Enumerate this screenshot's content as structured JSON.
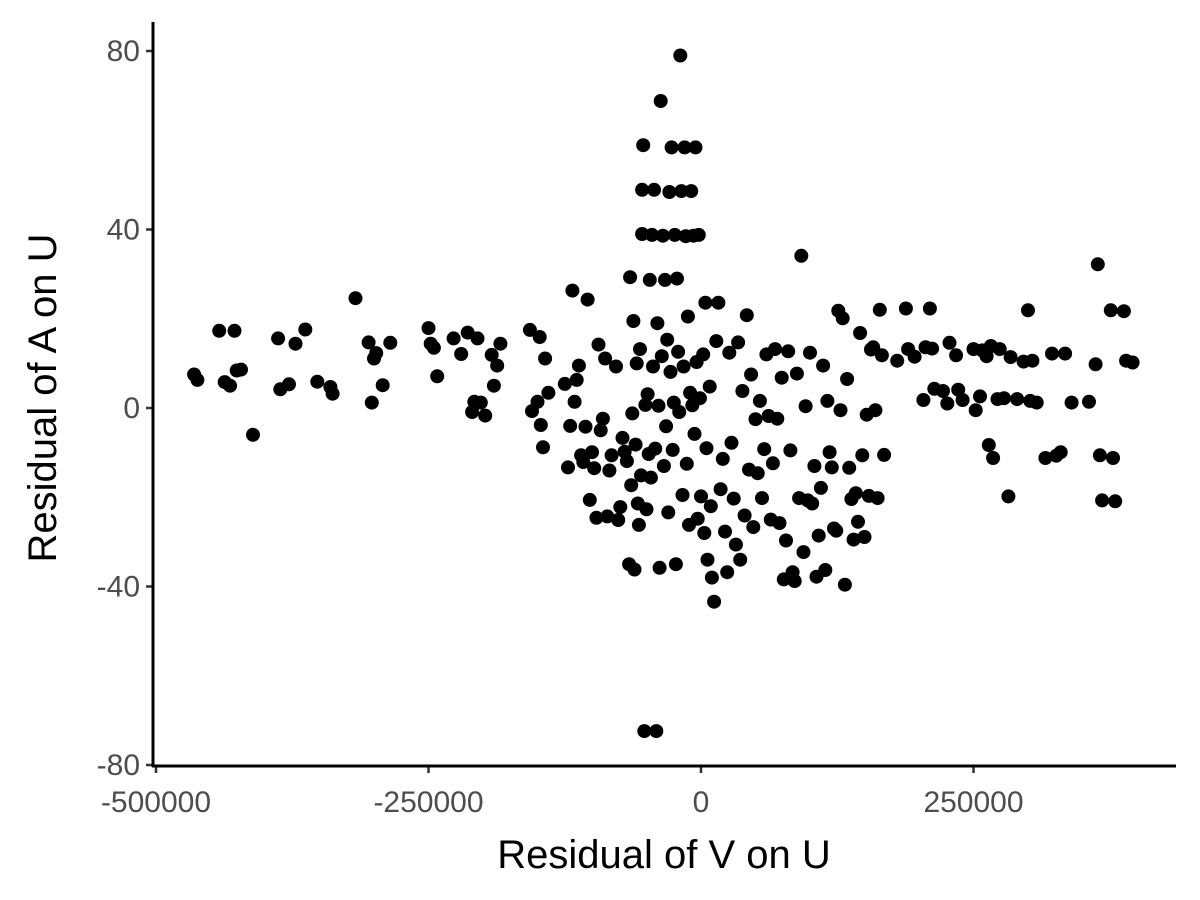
{
  "chart_data": {
    "type": "scatter",
    "title": "",
    "xlabel": "Residual of V on U",
    "ylabel": "Residual of A on U",
    "xlim": [
      -505000,
      435000
    ],
    "ylim": [
      -80,
      85
    ],
    "xticks": [
      -500000,
      -250000,
      0,
      250000
    ],
    "xtick_labels": [
      "-500000",
      "-250000",
      "0",
      "250000"
    ],
    "yticks": [
      -80,
      -40,
      0,
      40,
      80
    ],
    "ytick_labels": [
      "-80",
      "-40",
      "0",
      "40",
      "80"
    ],
    "grid": false,
    "legend": "none",
    "point_color": "#000000",
    "points": [
      [
        -465000,
        7.5
      ],
      [
        -462000,
        6.3
      ],
      [
        -442000,
        17.3
      ],
      [
        -437000,
        5.8
      ],
      [
        -432000,
        5.0
      ],
      [
        -428000,
        17.3
      ],
      [
        -426000,
        8.4
      ],
      [
        -422000,
        8.6
      ],
      [
        -411000,
        -6.0
      ],
      [
        -388000,
        15.6
      ],
      [
        -386000,
        4.2
      ],
      [
        -378000,
        5.3
      ],
      [
        -372000,
        14.4
      ],
      [
        -363000,
        17.6
      ],
      [
        -352000,
        5.9
      ],
      [
        -340000,
        4.7
      ],
      [
        -338000,
        3.2
      ],
      [
        -317000,
        24.6
      ],
      [
        -305000,
        14.7
      ],
      [
        -302000,
        1.2
      ],
      [
        -300000,
        11.1
      ],
      [
        -298000,
        12.3
      ],
      [
        -292000,
        5.1
      ],
      [
        -285000,
        14.6
      ],
      [
        -250000,
        17.9
      ],
      [
        -248000,
        14.4
      ],
      [
        -245000,
        13.5
      ],
      [
        -242000,
        7.1
      ],
      [
        -227000,
        15.6
      ],
      [
        -220000,
        12.1
      ],
      [
        -214000,
        16.9
      ],
      [
        -210000,
        -0.9
      ],
      [
        -208000,
        1.4
      ],
      [
        -205000,
        15.6
      ],
      [
        -202000,
        1.2
      ],
      [
        -198000,
        -1.7
      ],
      [
        -192000,
        11.9
      ],
      [
        -190000,
        5.0
      ],
      [
        -187000,
        9.5
      ],
      [
        -184000,
        14.4
      ],
      [
        -157000,
        17.5
      ],
      [
        -155000,
        -0.7
      ],
      [
        -150000,
        1.4
      ],
      [
        -148000,
        15.9
      ],
      [
        -147000,
        -3.8
      ],
      [
        -145000,
        -8.8
      ],
      [
        -143000,
        11.1
      ],
      [
        -140000,
        3.4
      ],
      [
        -125000,
        5.4
      ],
      [
        -122000,
        -13.3
      ],
      [
        -120000,
        -4.0
      ],
      [
        -118000,
        26.3
      ],
      [
        -116000,
        1.4
      ],
      [
        -114000,
        6.3
      ],
      [
        -112000,
        9.5
      ],
      [
        -110000,
        -10.6
      ],
      [
        -108000,
        -12.1
      ],
      [
        -106000,
        -4.2
      ],
      [
        -104000,
        24.3
      ],
      [
        -102000,
        -20.6
      ],
      [
        -100000,
        -9.9
      ],
      [
        -98000,
        -13.5
      ],
      [
        -96000,
        -24.6
      ],
      [
        -94000,
        14.2
      ],
      [
        -92000,
        -5.0
      ],
      [
        -90000,
        -2.4
      ],
      [
        -88000,
        11.1
      ],
      [
        -86000,
        -24.3
      ],
      [
        -84000,
        -14.0
      ],
      [
        -82000,
        -10.6
      ],
      [
        -78000,
        9.3
      ],
      [
        -76000,
        -25.1
      ],
      [
        -74000,
        -22.2
      ],
      [
        -72000,
        -6.7
      ],
      [
        -70000,
        -9.8
      ],
      [
        -68000,
        -11.9
      ],
      [
        -66000,
        -35.0
      ],
      [
        -65000,
        29.3
      ],
      [
        -64000,
        -17.3
      ],
      [
        -63000,
        -1.2
      ],
      [
        -62000,
        19.5
      ],
      [
        -61000,
        -36.2
      ],
      [
        -60000,
        -8.2
      ],
      [
        -59000,
        10.0
      ],
      [
        -58000,
        -21.4
      ],
      [
        -57000,
        -26.2
      ],
      [
        -56000,
        13.2
      ],
      [
        -55000,
        -15.1
      ],
      [
        -54000,
        39.0
      ],
      [
        -54000,
        48.9
      ],
      [
        -53000,
        58.9
      ],
      [
        -52000,
        -72.4
      ],
      [
        -51000,
        0.7
      ],
      [
        -50000,
        -22.7
      ],
      [
        -49000,
        3.1
      ],
      [
        -48000,
        -10.3
      ],
      [
        -47000,
        28.7
      ],
      [
        -46000,
        -15.6
      ],
      [
        -45000,
        38.8
      ],
      [
        -44000,
        9.3
      ],
      [
        -43000,
        48.9
      ],
      [
        -42000,
        -9.1
      ],
      [
        -41000,
        -72.4
      ],
      [
        -40000,
        19.0
      ],
      [
        -39000,
        0.5
      ],
      [
        -38000,
        -35.8
      ],
      [
        -37000,
        68.8
      ],
      [
        -36000,
        11.6
      ],
      [
        -35000,
        38.6
      ],
      [
        -34000,
        -13.0
      ],
      [
        -33000,
        28.7
      ],
      [
        -32000,
        -4.1
      ],
      [
        -31000,
        15.3
      ],
      [
        -30000,
        -23.4
      ],
      [
        -29000,
        48.4
      ],
      [
        -28000,
        8.1
      ],
      [
        -27000,
        58.4
      ],
      [
        -26000,
        -9.4
      ],
      [
        -25000,
        1.2
      ],
      [
        -24000,
        38.8
      ],
      [
        -23000,
        -35.0
      ],
      [
        -22000,
        29.0
      ],
      [
        -21000,
        12.6
      ],
      [
        -20000,
        -0.9
      ],
      [
        -19000,
        79.0
      ],
      [
        -18000,
        48.6
      ],
      [
        -17000,
        -19.5
      ],
      [
        -16000,
        9.3
      ],
      [
        -15000,
        58.4
      ],
      [
        -14000,
        38.5
      ],
      [
        -13000,
        -12.5
      ],
      [
        -12000,
        20.5
      ],
      [
        -11000,
        -26.2
      ],
      [
        -10000,
        3.4
      ],
      [
        -9000,
        48.6
      ],
      [
        -8000,
        0.6
      ],
      [
        -7000,
        38.6
      ],
      [
        -6000,
        -5.8
      ],
      [
        -5000,
        58.4
      ],
      [
        -4000,
        10.3
      ],
      [
        -3000,
        -24.8
      ],
      [
        -2000,
        38.8
      ],
      [
        -1000,
        2.2
      ],
      [
        0,
        -19.8
      ],
      [
        2000,
        12.0
      ],
      [
        3000,
        -28.0
      ],
      [
        4000,
        23.6
      ],
      [
        5000,
        -9.0
      ],
      [
        6000,
        -34.0
      ],
      [
        8000,
        4.8
      ],
      [
        9000,
        -22.0
      ],
      [
        10000,
        -38.0
      ],
      [
        12000,
        -43.4
      ],
      [
        14000,
        15.0
      ],
      [
        16000,
        23.6
      ],
      [
        18000,
        -18.2
      ],
      [
        20000,
        -11.4
      ],
      [
        22000,
        -27.7
      ],
      [
        24000,
        -36.8
      ],
      [
        26000,
        12.4
      ],
      [
        28000,
        -7.8
      ],
      [
        30000,
        -20.3
      ],
      [
        32000,
        -30.6
      ],
      [
        34000,
        14.7
      ],
      [
        36000,
        -34.0
      ],
      [
        38000,
        3.8
      ],
      [
        40000,
        -24.1
      ],
      [
        42000,
        20.8
      ],
      [
        44000,
        -13.8
      ],
      [
        46000,
        7.5
      ],
      [
        48000,
        -26.7
      ],
      [
        50000,
        -2.5
      ],
      [
        52000,
        -14.6
      ],
      [
        54000,
        1.6
      ],
      [
        56000,
        -20.2
      ],
      [
        58000,
        -9.2
      ],
      [
        60000,
        12.0
      ],
      [
        62000,
        -1.8
      ],
      [
        64000,
        -25.0
      ],
      [
        66000,
        -12.4
      ],
      [
        68000,
        13.2
      ],
      [
        70000,
        -2.4
      ],
      [
        72000,
        -25.8
      ],
      [
        74000,
        6.8
      ],
      [
        76000,
        -38.4
      ],
      [
        78000,
        -29.7
      ],
      [
        80000,
        12.7
      ],
      [
        82000,
        -9.5
      ],
      [
        84000,
        -36.8
      ],
      [
        86000,
        -38.8
      ],
      [
        88000,
        7.7
      ],
      [
        90000,
        -20.2
      ],
      [
        92000,
        34.1
      ],
      [
        94000,
        -32.3
      ],
      [
        96000,
        0.4
      ],
      [
        98000,
        -20.7
      ],
      [
        100000,
        12.4
      ],
      [
        102000,
        -21.4
      ],
      [
        104000,
        -13.0
      ],
      [
        106000,
        -37.8
      ],
      [
        108000,
        -28.6
      ],
      [
        110000,
        -17.9
      ],
      [
        112000,
        9.5
      ],
      [
        114000,
        -36.3
      ],
      [
        116000,
        1.6
      ],
      [
        118000,
        -9.9
      ],
      [
        120000,
        -13.3
      ],
      [
        122000,
        -27.0
      ],
      [
        124000,
        -27.5
      ],
      [
        126000,
        21.8
      ],
      [
        128000,
        -0.5
      ],
      [
        130000,
        20.1
      ],
      [
        132000,
        -39.6
      ],
      [
        134000,
        6.5
      ],
      [
        136000,
        -13.4
      ],
      [
        138000,
        -20.4
      ],
      [
        140000,
        -29.5
      ],
      [
        142000,
        -19.1
      ],
      [
        144000,
        -25.5
      ],
      [
        146000,
        16.8
      ],
      [
        148000,
        -10.6
      ],
      [
        150000,
        -28.9
      ],
      [
        152000,
        -1.5
      ],
      [
        154000,
        -19.7
      ],
      [
        156000,
        13.1
      ],
      [
        158000,
        13.6
      ],
      [
        160000,
        -0.5
      ],
      [
        162000,
        -20.2
      ],
      [
        164000,
        22.0
      ],
      [
        166000,
        11.8
      ],
      [
        168000,
        -10.5
      ],
      [
        180000,
        10.6
      ],
      [
        188000,
        22.3
      ],
      [
        190000,
        13.2
      ],
      [
        196000,
        11.5
      ],
      [
        204000,
        1.8
      ],
      [
        206000,
        13.6
      ],
      [
        210000,
        22.3
      ],
      [
        212000,
        13.3
      ],
      [
        214000,
        4.3
      ],
      [
        222000,
        3.8
      ],
      [
        226000,
        1.0
      ],
      [
        228000,
        14.6
      ],
      [
        234000,
        11.8
      ],
      [
        236000,
        4.1
      ],
      [
        240000,
        1.8
      ],
      [
        250000,
        13.2
      ],
      [
        252000,
        -0.5
      ],
      [
        256000,
        2.6
      ],
      [
        258000,
        12.9
      ],
      [
        262000,
        11.6
      ],
      [
        264000,
        -8.3
      ],
      [
        266000,
        13.9
      ],
      [
        268000,
        -11.2
      ],
      [
        272000,
        2.0
      ],
      [
        274000,
        13.2
      ],
      [
        278000,
        2.2
      ],
      [
        282000,
        -19.8
      ],
      [
        284000,
        11.4
      ],
      [
        290000,
        2.0
      ],
      [
        296000,
        10.4
      ],
      [
        300000,
        21.9
      ],
      [
        302000,
        1.6
      ],
      [
        304000,
        10.6
      ],
      [
        308000,
        1.2
      ],
      [
        316000,
        -11.2
      ],
      [
        322000,
        12.2
      ],
      [
        326000,
        -10.7
      ],
      [
        330000,
        -9.9
      ],
      [
        334000,
        12.2
      ],
      [
        340000,
        1.2
      ],
      [
        356000,
        1.4
      ],
      [
        362000,
        9.8
      ],
      [
        364000,
        32.2
      ],
      [
        366000,
        -10.6
      ],
      [
        368000,
        -20.7
      ],
      [
        376000,
        21.9
      ],
      [
        378000,
        -11.2
      ],
      [
        380000,
        -20.9
      ],
      [
        388000,
        21.7
      ],
      [
        390000,
        10.6
      ],
      [
        396000,
        10.2
      ]
    ]
  }
}
